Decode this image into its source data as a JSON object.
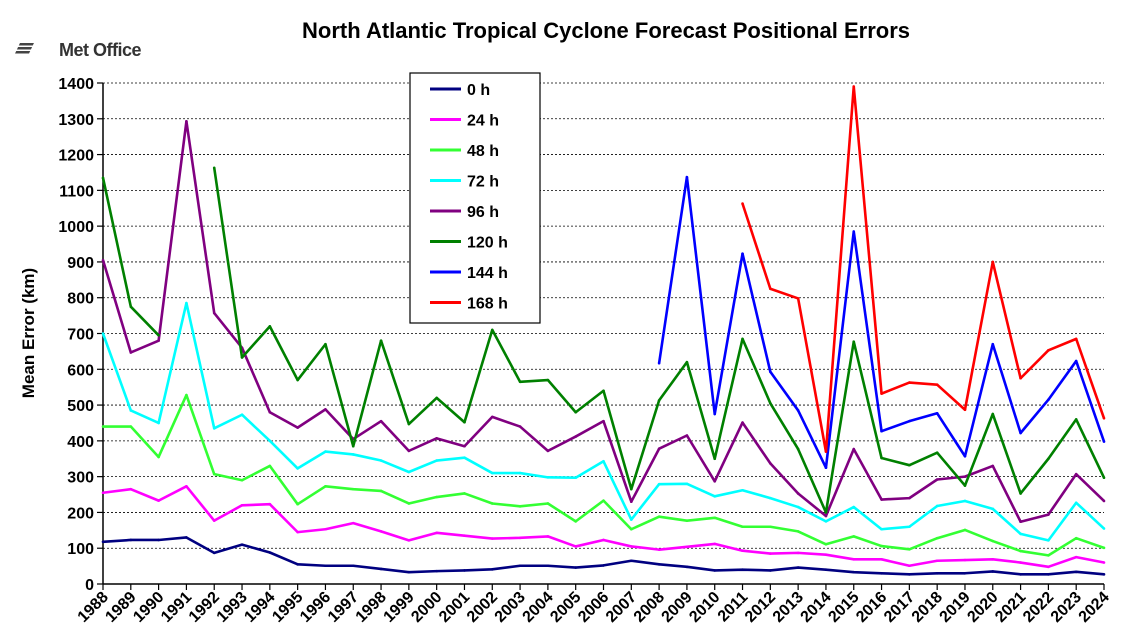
{
  "branding": {
    "logo_text": "Met Office"
  },
  "chart_data": {
    "type": "line",
    "title": "North Atlantic Tropical Cyclone Forecast Positional Errors",
    "xlabel": "",
    "ylabel": "Mean Error (km)",
    "ylim": [
      0,
      1400
    ],
    "yticks": [
      0,
      100,
      200,
      300,
      400,
      500,
      600,
      700,
      800,
      900,
      1000,
      1100,
      1200,
      1300,
      1400
    ],
    "grid": "horizontal dashed",
    "legend_position": "top-center",
    "categories": [
      "1988",
      "1989",
      "1990",
      "1991",
      "1992",
      "1993",
      "1994",
      "1995",
      "1996",
      "1997",
      "1998",
      "1999",
      "2000",
      "2001",
      "2002",
      "2003",
      "2004",
      "2005",
      "2006",
      "2007",
      "2008",
      "2009",
      "2010",
      "2011",
      "2012",
      "2013",
      "2014",
      "2015",
      "2016",
      "2017",
      "2018",
      "2019",
      "2020",
      "2021",
      "2022",
      "2023",
      "2024"
    ],
    "series": [
      {
        "name": "0 h",
        "color": "#000080",
        "values": [
          118,
          123,
          123,
          130,
          87,
          110,
          88,
          55,
          51,
          51,
          42,
          33,
          36,
          38,
          41,
          51,
          51,
          46,
          52,
          65,
          55,
          48,
          38,
          40,
          38,
          46,
          40,
          33,
          30,
          27,
          30,
          30,
          35,
          27,
          27,
          34,
          27
        ]
      },
      {
        "name": "24 h",
        "color": "#ff00ff",
        "values": [
          255,
          265,
          233,
          273,
          177,
          220,
          223,
          145,
          153,
          170,
          147,
          122,
          143,
          135,
          127,
          129,
          133,
          105,
          123,
          105,
          96,
          104,
          112,
          93,
          85,
          87,
          82,
          69,
          69,
          51,
          65,
          67,
          69,
          60,
          48,
          75,
          60
        ]
      },
      {
        "name": "48 h",
        "color": "#33ff33",
        "values": [
          440,
          440,
          355,
          528,
          307,
          290,
          330,
          223,
          273,
          265,
          260,
          225,
          243,
          253,
          225,
          217,
          225,
          175,
          233,
          153,
          188,
          177,
          185,
          160,
          160,
          147,
          111,
          133,
          106,
          97,
          128,
          151,
          120,
          92,
          80,
          128,
          101
        ]
      },
      {
        "name": "72 h",
        "color": "#00ffff",
        "values": [
          700,
          485,
          450,
          785,
          435,
          473,
          400,
          323,
          370,
          362,
          345,
          313,
          345,
          353,
          310,
          310,
          298,
          297,
          343,
          180,
          279,
          280,
          245,
          262,
          240,
          215,
          175,
          215,
          153,
          160,
          218,
          232,
          210,
          140,
          122,
          227,
          155
        ]
      },
      {
        "name": "96 h",
        "color": "#800080",
        "values": [
          905,
          647,
          680,
          1293,
          757,
          660,
          480,
          437,
          488,
          405,
          455,
          372,
          407,
          385,
          467,
          440,
          372,
          412,
          455,
          230,
          378,
          415,
          287,
          451,
          337,
          253,
          190,
          377,
          236,
          240,
          292,
          300,
          330,
          174,
          194,
          307,
          232
        ]
      },
      {
        "name": "120 h",
        "color": "#008000",
        "values": [
          1135,
          775,
          695,
          null,
          1163,
          633,
          720,
          570,
          670,
          385,
          680,
          447,
          520,
          452,
          710,
          565,
          570,
          480,
          540,
          265,
          513,
          620,
          350,
          685,
          505,
          377,
          200,
          677,
          352,
          332,
          367,
          275,
          475,
          253,
          350,
          460,
          297
        ]
      },
      {
        "name": "144 h",
        "color": "#0000ff",
        "values": [
          null,
          null,
          null,
          null,
          null,
          null,
          null,
          null,
          null,
          null,
          null,
          null,
          null,
          null,
          null,
          null,
          null,
          null,
          null,
          null,
          617,
          1137,
          475,
          923,
          593,
          485,
          325,
          985,
          427,
          455,
          477,
          357,
          670,
          422,
          515,
          623,
          398
        ]
      },
      {
        "name": "168 h",
        "color": "#ff0000",
        "values": [
          null,
          null,
          null,
          null,
          null,
          null,
          null,
          null,
          null,
          null,
          null,
          null,
          null,
          null,
          null,
          null,
          null,
          null,
          null,
          null,
          null,
          null,
          null,
          1063,
          825,
          798,
          370,
          1390,
          532,
          563,
          557,
          487,
          900,
          575,
          653,
          685,
          463
        ]
      }
    ]
  }
}
